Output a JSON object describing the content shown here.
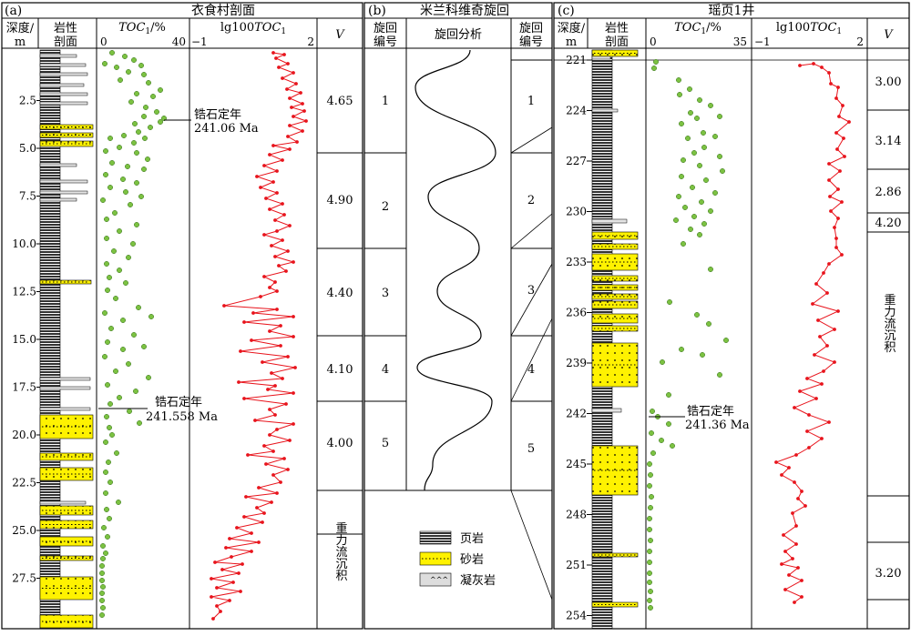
{
  "panels": {
    "a": {
      "tag": "(a)",
      "title": "衣食村剖面",
      "headers": {
        "depth": [
          "深度/",
          "m"
        ],
        "lith": [
          "岩性",
          "剖面"
        ],
        "toc_label": "TOC",
        "toc_sub": "1",
        "toc_unit": "/%",
        "toc_min": "0",
        "toc_max": "40",
        "lg_prefix": "lg100",
        "lg_label": "TOC",
        "lg_sub": "1",
        "lg_min": "−1",
        "lg_max": "2",
        "v": "V"
      },
      "depth_ticks": [
        "2.5",
        "5.0",
        "7.5",
        "10.0",
        "12.5",
        "15.0",
        "17.5",
        "20.0",
        "22.5",
        "25.0",
        "27.5"
      ],
      "ages": [
        {
          "label": "锆石定年",
          "value": "241.06 Ma"
        },
        {
          "label": "锆石定年",
          "value": "241.558 Ma"
        }
      ],
      "v_values": [
        "4.65",
        "4.90",
        "4.40",
        "4.10",
        "4.00"
      ],
      "v_gravity": "重力流沉积"
    },
    "b": {
      "tag": "(b)",
      "title": "米兰科维奇旋回",
      "headers": {
        "num_left": [
          "旋回",
          "编号"
        ],
        "analysis": "旋回分析",
        "num_right": [
          "旋回",
          "编号"
        ]
      },
      "cycles": [
        "1",
        "2",
        "3",
        "4",
        "5"
      ]
    },
    "c": {
      "tag": "(c)",
      "title": "瑶页1井",
      "headers": {
        "depth": [
          "深度/",
          "m"
        ],
        "lith": [
          "岩性",
          "剖面"
        ],
        "toc_label": "TOC",
        "toc_sub": "1",
        "toc_unit": "/%",
        "toc_min": "0",
        "toc_max": "35",
        "lg_prefix": "lg100",
        "lg_label": "TOC",
        "lg_sub": "1",
        "lg_min": "−1",
        "lg_max": "2",
        "v": "V"
      },
      "depth_ticks": [
        "221",
        "224",
        "227",
        "230",
        "233",
        "236",
        "239",
        "242",
        "245",
        "248",
        "251",
        "254"
      ],
      "age": {
        "label": "锆石定年",
        "value": "241.36 Ma"
      },
      "v_values": [
        "3.00",
        "3.14",
        "2.86",
        "4.20",
        "3.20"
      ],
      "v_gravity": "重力流沉积"
    }
  },
  "legend": {
    "shale": "页岩",
    "sandstone": "砂岩",
    "tuff": "凝灰岩"
  },
  "colors": {
    "toc_dot": "#7cc242",
    "toc_dot_edge": "#2f6b12",
    "lg_line": "#e8141c",
    "sandstone": "#fff200"
  }
}
